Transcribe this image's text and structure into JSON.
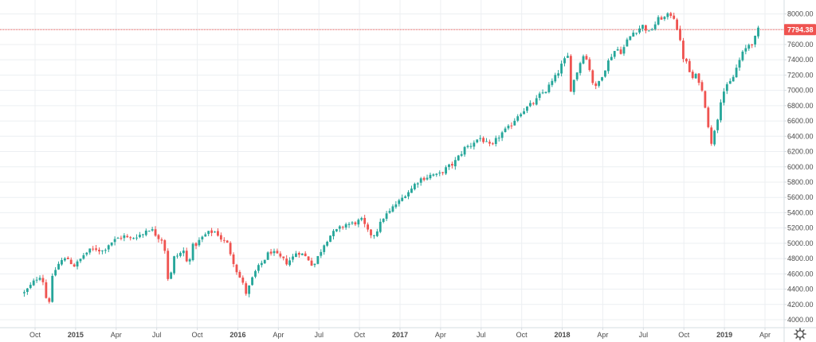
{
  "chart_data": {
    "type": "candlestick",
    "title": "",
    "interval": "weekly",
    "ylim": [
      3900,
      8100
    ],
    "y_ticks": [
      "4000.00",
      "4200.00",
      "4400.00",
      "4600.00",
      "4800.00",
      "5000.00",
      "5200.00",
      "5400.00",
      "5600.00",
      "5800.00",
      "6000.00",
      "6200.00",
      "6400.00",
      "6600.00",
      "6800.00",
      "7000.00",
      "7200.00",
      "7400.00",
      "7600.00",
      "7800.00",
      "8000.00"
    ],
    "x_ticks": [
      {
        "label": "Oct",
        "t": 0.0,
        "bold": false
      },
      {
        "label": "2015",
        "t": 3.0,
        "bold": true
      },
      {
        "label": "Apr",
        "t": 6.0,
        "bold": false
      },
      {
        "label": "Jul",
        "t": 9.0,
        "bold": false
      },
      {
        "label": "Oct",
        "t": 12.0,
        "bold": false
      },
      {
        "label": "2016",
        "t": 15.0,
        "bold": true
      },
      {
        "label": "Apr",
        "t": 18.0,
        "bold": false
      },
      {
        "label": "Jul",
        "t": 21.0,
        "bold": false
      },
      {
        "label": "Oct",
        "t": 24.0,
        "bold": false
      },
      {
        "label": "2017",
        "t": 27.0,
        "bold": true
      },
      {
        "label": "Apr",
        "t": 30.0,
        "bold": false
      },
      {
        "label": "Jul",
        "t": 33.0,
        "bold": false
      },
      {
        "label": "Oct",
        "t": 36.0,
        "bold": false
      },
      {
        "label": "2018",
        "t": 39.0,
        "bold": true
      },
      {
        "label": "Apr",
        "t": 42.0,
        "bold": false
      },
      {
        "label": "Jul",
        "t": 45.0,
        "bold": false
      },
      {
        "label": "Oct",
        "t": 48.0,
        "bold": false
      },
      {
        "label": "2019",
        "t": 51.0,
        "bold": true
      },
      {
        "label": "Apr",
        "t": 54.0,
        "bold": false
      }
    ],
    "grid": true,
    "last_price": "7794.38",
    "colors": {
      "up": "#26a69a",
      "down": "#ef5350",
      "price_line": "#ef5350",
      "grid": "#eceff2",
      "axis": "#d6dce1",
      "text": "#4a4a4a"
    },
    "anchors": [
      [
        -0.8,
        4350
      ],
      [
        -0.3,
        4450
      ],
      [
        0.2,
        4560
      ],
      [
        0.5,
        4590
      ],
      [
        0.8,
        4300
      ],
      [
        1.0,
        4180
      ],
      [
        1.2,
        4500
      ],
      [
        1.6,
        4700
      ],
      [
        2.0,
        4780
      ],
      [
        2.5,
        4800
      ],
      [
        2.8,
        4700
      ],
      [
        3.2,
        4750
      ],
      [
        3.6,
        4850
      ],
      [
        4.0,
        4900
      ],
      [
        4.5,
        4930
      ],
      [
        5.0,
        4900
      ],
      [
        5.5,
        5000
      ],
      [
        6.0,
        5050
      ],
      [
        6.5,
        5100
      ],
      [
        7.0,
        5050
      ],
      [
        7.5,
        5100
      ],
      [
        8.0,
        5120
      ],
      [
        8.3,
        5200
      ],
      [
        8.6,
        5180
      ],
      [
        9.0,
        5100
      ],
      [
        9.4,
        5050
      ],
      [
        9.7,
        4850
      ],
      [
        9.9,
        4380
      ],
      [
        10.2,
        4800
      ],
      [
        10.6,
        4850
      ],
      [
        11.0,
        4900
      ],
      [
        11.3,
        4700
      ],
      [
        11.6,
        4950
      ],
      [
        12.0,
        5000
      ],
      [
        12.5,
        5100
      ],
      [
        13.0,
        5150
      ],
      [
        13.4,
        5150
      ],
      [
        13.8,
        5050
      ],
      [
        14.2,
        5000
      ],
      [
        14.6,
        4800
      ],
      [
        15.0,
        4600
      ],
      [
        15.3,
        4500
      ],
      [
        15.6,
        4350
      ],
      [
        15.9,
        4450
      ],
      [
        16.2,
        4600
      ],
      [
        16.6,
        4700
      ],
      [
        17.0,
        4800
      ],
      [
        17.4,
        4900
      ],
      [
        17.8,
        4850
      ],
      [
        18.2,
        4800
      ],
      [
        18.6,
        4750
      ],
      [
        19.0,
        4800
      ],
      [
        19.4,
        4900
      ],
      [
        19.8,
        4850
      ],
      [
        20.2,
        4800
      ],
      [
        20.6,
        4700
      ],
      [
        21.0,
        4850
      ],
      [
        21.4,
        5000
      ],
      [
        21.8,
        5100
      ],
      [
        22.2,
        5150
      ],
      [
        22.6,
        5200
      ],
      [
        23.0,
        5250
      ],
      [
        23.4,
        5250
      ],
      [
        23.8,
        5280
      ],
      [
        24.2,
        5300
      ],
      [
        24.6,
        5150
      ],
      [
        25.0,
        5100
      ],
      [
        25.4,
        5200
      ],
      [
        25.8,
        5350
      ],
      [
        26.2,
        5400
      ],
      [
        26.6,
        5500
      ],
      [
        27.0,
        5550
      ],
      [
        27.4,
        5650
      ],
      [
        27.8,
        5700
      ],
      [
        28.2,
        5800
      ],
      [
        28.6,
        5850
      ],
      [
        29.0,
        5870
      ],
      [
        29.4,
        5900
      ],
      [
        29.8,
        5880
      ],
      [
        30.2,
        5950
      ],
      [
        30.6,
        6000
      ],
      [
        31.0,
        6050
      ],
      [
        31.4,
        6150
      ],
      [
        31.8,
        6250
      ],
      [
        32.2,
        6280
      ],
      [
        32.6,
        6350
      ],
      [
        33.0,
        6380
      ],
      [
        33.4,
        6300
      ],
      [
        33.8,
        6250
      ],
      [
        34.2,
        6380
      ],
      [
        34.6,
        6450
      ],
      [
        35.0,
        6500
      ],
      [
        35.4,
        6600
      ],
      [
        35.8,
        6700
      ],
      [
        36.2,
        6750
      ],
      [
        36.6,
        6800
      ],
      [
        37.0,
        6850
      ],
      [
        37.4,
        6950
      ],
      [
        37.8,
        7000
      ],
      [
        38.2,
        7100
      ],
      [
        38.6,
        7200
      ],
      [
        39.0,
        7350
      ],
      [
        39.4,
        7450
      ],
      [
        39.6,
        7000
      ],
      [
        39.9,
        7150
      ],
      [
        40.2,
        7300
      ],
      [
        40.6,
        7500
      ],
      [
        41.0,
        7300
      ],
      [
        41.4,
        7000
      ],
      [
        41.8,
        7150
      ],
      [
        42.2,
        7300
      ],
      [
        42.6,
        7450
      ],
      [
        43.0,
        7550
      ],
      [
        43.4,
        7500
      ],
      [
        43.8,
        7650
      ],
      [
        44.2,
        7750
      ],
      [
        44.6,
        7800
      ],
      [
        45.0,
        7850
      ],
      [
        45.4,
        7750
      ],
      [
        45.8,
        7850
      ],
      [
        46.2,
        7950
      ],
      [
        46.6,
        7950
      ],
      [
        47.0,
        8000
      ],
      [
        47.3,
        7950
      ],
      [
        47.6,
        7750
      ],
      [
        47.9,
        7450
      ],
      [
        48.2,
        7350
      ],
      [
        48.6,
        7150
      ],
      [
        49.0,
        7200
      ],
      [
        49.4,
        6950
      ],
      [
        49.7,
        6700
      ],
      [
        50.0,
        6250
      ],
      [
        50.2,
        6450
      ],
      [
        50.5,
        6650
      ],
      [
        50.8,
        6950
      ],
      [
        51.2,
        7050
      ],
      [
        51.6,
        7150
      ],
      [
        52.0,
        7350
      ],
      [
        52.4,
        7500
      ],
      [
        52.8,
        7600
      ],
      [
        53.2,
        7650
      ],
      [
        53.5,
        7790
      ]
    ]
  }
}
